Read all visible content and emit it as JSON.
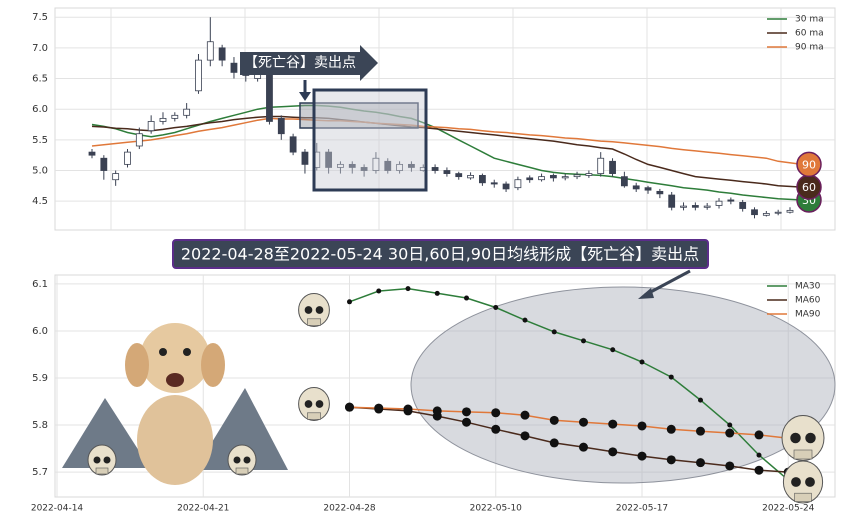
{
  "chart_data": [
    {
      "type": "candlestick",
      "annotation": "【死亡谷】卖出点",
      "legend": "upper right",
      "grid": true,
      "ylim": [
        4.03,
        7.65
      ],
      "yticks": [
        4.5,
        {
          "value": 5,
          "label": "5.0"
        },
        5.5,
        {
          "value": 6,
          "label": "6.0"
        },
        6.5,
        {
          "value": 7,
          "label": "7.0"
        },
        7.5
      ],
      "up_color": "#ffffff",
      "down_color": "#3a4152",
      "open": [
        5.3,
        5.2,
        4.85,
        5.1,
        5.4,
        5.65,
        5.8,
        5.85,
        5.9,
        6.3,
        6.8,
        7.0,
        6.75,
        6.6,
        6.5,
        6.6,
        5.85,
        5.55,
        5.3,
        5.05,
        5.3,
        5.05,
        5.1,
        5.05,
        5.0,
        5.15,
        5.0,
        5.1,
        5.0,
        5.05,
        5.0,
        4.95,
        4.88,
        4.92,
        4.8,
        4.78,
        4.72,
        4.88,
        4.85,
        4.92,
        4.88,
        4.9,
        4.92,
        4.95,
        5.15,
        4.9,
        4.75,
        4.72,
        4.66,
        4.6,
        4.4,
        4.43,
        4.4,
        4.43,
        4.52,
        4.48,
        4.36,
        4.27,
        4.31,
        4.32
      ],
      "high": [
        5.35,
        5.25,
        5.0,
        5.35,
        5.7,
        5.9,
        5.95,
        5.95,
        6.1,
        6.9,
        7.5,
        7.05,
        6.85,
        6.7,
        6.7,
        6.65,
        5.9,
        5.6,
        5.35,
        5.45,
        5.35,
        5.15,
        5.15,
        5.1,
        5.3,
        5.2,
        5.15,
        5.15,
        5.1,
        5.1,
        5.05,
        4.98,
        4.97,
        4.95,
        4.85,
        4.82,
        4.9,
        4.92,
        4.95,
        4.95,
        4.95,
        4.98,
        5.0,
        5.3,
        5.2,
        4.98,
        4.8,
        4.75,
        4.7,
        4.65,
        4.48,
        4.48,
        4.47,
        4.55,
        4.56,
        4.52,
        4.4,
        4.34,
        4.36,
        4.4
      ],
      "low": [
        5.2,
        4.85,
        4.75,
        5.05,
        5.35,
        5.6,
        5.75,
        5.8,
        5.85,
        6.25,
        6.7,
        6.7,
        6.5,
        6.45,
        6.45,
        5.75,
        5.5,
        5.25,
        4.95,
        5.0,
        4.95,
        4.95,
        4.95,
        4.9,
        4.95,
        4.95,
        4.95,
        4.98,
        4.98,
        4.95,
        4.9,
        4.85,
        4.85,
        4.75,
        4.72,
        4.65,
        4.68,
        4.8,
        4.82,
        4.82,
        4.84,
        4.86,
        4.88,
        4.9,
        4.9,
        4.72,
        4.65,
        4.62,
        4.55,
        4.35,
        4.35,
        4.35,
        4.36,
        4.38,
        4.45,
        4.33,
        4.22,
        4.25,
        4.27,
        4.3
      ],
      "close": [
        5.25,
        5.0,
        4.95,
        5.3,
        5.6,
        5.8,
        5.85,
        5.9,
        6.0,
        6.8,
        7.1,
        6.8,
        6.6,
        6.55,
        6.6,
        5.8,
        5.6,
        5.3,
        5.1,
        5.3,
        5.05,
        5.1,
        5.05,
        5.0,
        5.2,
        5.0,
        5.1,
        5.05,
        5.05,
        5.0,
        4.95,
        4.9,
        4.92,
        4.8,
        4.78,
        4.7,
        4.85,
        4.85,
        4.9,
        4.88,
        4.9,
        4.93,
        4.95,
        5.2,
        4.95,
        4.75,
        4.7,
        4.68,
        4.62,
        4.4,
        4.42,
        4.4,
        4.42,
        4.5,
        4.5,
        4.38,
        4.28,
        4.3,
        4.32,
        4.35
      ],
      "series": [
        {
          "name": "30 ma",
          "badge": "30",
          "color": "#2e7d3a",
          "values": [
            5.75,
            5.72,
            5.68,
            5.62,
            5.58,
            5.55,
            5.58,
            5.62,
            5.68,
            5.74,
            5.8,
            5.85,
            5.9,
            5.95,
            6.0,
            6.03,
            6.04,
            6.05,
            6.06,
            6.06,
            6.05,
            6.03,
            6.0,
            5.97,
            5.95,
            5.92,
            5.88,
            5.85,
            5.78,
            5.7,
            5.6,
            5.5,
            5.4,
            5.3,
            5.2,
            5.15,
            5.1,
            5.05,
            5.0,
            4.97,
            4.95,
            4.94,
            4.93,
            4.92,
            4.9,
            4.87,
            4.84,
            4.81,
            4.78,
            4.75,
            4.72,
            4.7,
            4.68,
            4.65,
            4.63,
            4.6,
            4.58,
            4.56,
            4.54,
            4.52
          ]
        },
        {
          "name": "60 ma",
          "badge": "60",
          "color": "#4a2a1c",
          "values": [
            5.72,
            5.71,
            5.69,
            5.68,
            5.66,
            5.65,
            5.67,
            5.7,
            5.72,
            5.75,
            5.78,
            5.8,
            5.83,
            5.85,
            5.87,
            5.88,
            5.88,
            5.87,
            5.86,
            5.86,
            5.85,
            5.83,
            5.81,
            5.79,
            5.77,
            5.75,
            5.73,
            5.71,
            5.7,
            5.68,
            5.66,
            5.64,
            5.62,
            5.6,
            5.58,
            5.56,
            5.54,
            5.52,
            5.5,
            5.48,
            5.45,
            5.42,
            5.4,
            5.37,
            5.35,
            5.27,
            5.18,
            5.1,
            5.05,
            5.0,
            4.95,
            4.9,
            4.88,
            4.86,
            4.84,
            4.82,
            4.8,
            4.78,
            4.75,
            4.73
          ]
        },
        {
          "name": "90 ma",
          "badge": "90",
          "color": "#e0783a",
          "values": [
            5.4,
            5.42,
            5.44,
            5.46,
            5.48,
            5.5,
            5.53,
            5.57,
            5.6,
            5.64,
            5.67,
            5.7,
            5.74,
            5.78,
            5.82,
            5.85,
            5.84,
            5.84,
            5.83,
            5.82,
            5.81,
            5.81,
            5.8,
            5.79,
            5.77,
            5.76,
            5.75,
            5.74,
            5.72,
            5.71,
            5.7,
            5.68,
            5.67,
            5.65,
            5.63,
            5.62,
            5.6,
            5.58,
            5.57,
            5.55,
            5.53,
            5.52,
            5.5,
            5.48,
            5.47,
            5.45,
            5.43,
            5.41,
            5.39,
            5.36,
            5.34,
            5.32,
            5.3,
            5.28,
            5.26,
            5.24,
            5.22,
            5.2,
            5.15,
            5.1
          ]
        }
      ]
    },
    {
      "type": "line",
      "title": "2022-04-28至2022-05-24 30日,60日,90日均线形成【死亡谷】卖出点",
      "legend": "upper right",
      "grid": true,
      "ylim": [
        5.647,
        6.119
      ],
      "yticks": [
        5.7,
        5.8,
        5.9,
        {
          "value": 6,
          "label": "6.0"
        },
        6.1
      ],
      "categories": [
        "2022-04-14",
        null,
        null,
        null,
        null,
        "2022-04-21",
        null,
        null,
        null,
        null,
        "2022-04-28",
        null,
        null,
        null,
        null,
        "2022-05-10",
        null,
        null,
        null,
        null,
        "2022-05-17",
        null,
        null,
        null,
        null,
        "2022-05-24"
      ],
      "series": [
        {
          "name": "MA30",
          "color": "#2e7d3a",
          "values": [
            null,
            null,
            null,
            null,
            null,
            null,
            null,
            null,
            null,
            null,
            6.062,
            6.085,
            6.09,
            6.08,
            6.07,
            6.05,
            6.023,
            5.998,
            5.979,
            5.96,
            5.934,
            5.902,
            5.853,
            5.8,
            5.736,
            5.683
          ]
        },
        {
          "name": "MA60",
          "color": "#4a2a1c",
          "values": [
            null,
            null,
            null,
            null,
            null,
            null,
            null,
            null,
            null,
            null,
            5.838,
            5.834,
            5.83,
            5.819,
            5.806,
            5.791,
            5.777,
            5.762,
            5.753,
            5.743,
            5.734,
            5.726,
            5.72,
            5.713,
            5.704,
            5.7
          ]
        },
        {
          "name": "MA90",
          "color": "#e0783a",
          "values": [
            null,
            null,
            null,
            null,
            null,
            null,
            null,
            null,
            null,
            null,
            5.838,
            5.836,
            5.834,
            5.83,
            5.828,
            5.826,
            5.821,
            5.81,
            5.806,
            5.802,
            5.798,
            5.791,
            5.787,
            5.783,
            5.779,
            5.772
          ]
        }
      ]
    }
  ]
}
